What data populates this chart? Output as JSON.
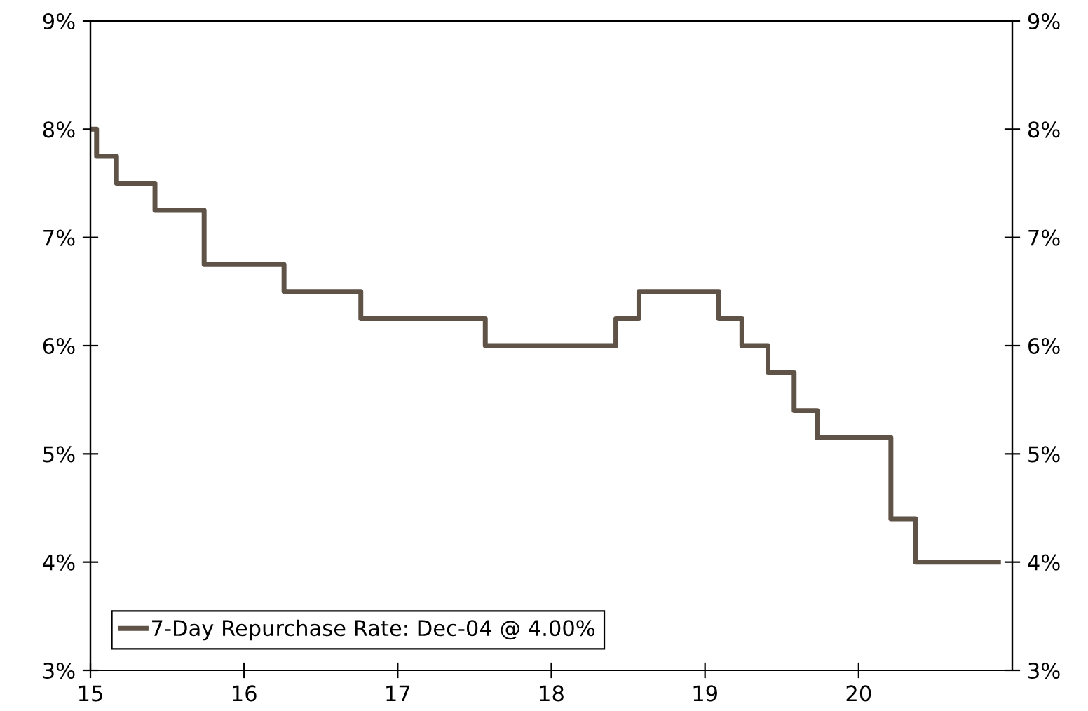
{
  "chart_data": {
    "type": "step",
    "x": [
      15.0,
      15.04,
      15.17,
      15.42,
      15.74,
      16.26,
      16.76,
      17.57,
      18.42,
      18.57,
      19.09,
      19.24,
      19.41,
      19.58,
      19.73,
      20.21,
      20.37,
      20.91
    ],
    "series": [
      {
        "name": "7-Day Repurchase Rate: Dec-04 @ 4.00%",
        "color": "#5f5246",
        "values": [
          8.0,
          7.75,
          7.5,
          7.25,
          6.75,
          6.5,
          6.25,
          6.0,
          6.25,
          6.5,
          6.25,
          6.0,
          5.75,
          5.4,
          5.15,
          4.4,
          4.0,
          4.0
        ]
      }
    ],
    "xlim": [
      15,
      21
    ],
    "xticks": [
      15,
      16,
      17,
      18,
      19,
      20
    ],
    "ylim": [
      3,
      9
    ],
    "yticks": [
      {
        "value": 3,
        "label": "3%"
      },
      {
        "value": 4,
        "label": "4%"
      },
      {
        "value": 5,
        "label": "5%"
      },
      {
        "value": 6,
        "label": "6%"
      },
      {
        "value": 7,
        "label": "7%"
      },
      {
        "value": 8,
        "label": "8%"
      },
      {
        "value": 9,
        "label": "9%"
      }
    ],
    "y2lim": [
      3,
      9
    ],
    "y2ticks": [
      {
        "value": 3,
        "label": "3%"
      },
      {
        "value": 4,
        "label": "4%"
      },
      {
        "value": 5,
        "label": "5%"
      },
      {
        "value": 6,
        "label": "6%"
      },
      {
        "value": 7,
        "label": "7%"
      },
      {
        "value": 8,
        "label": "8%"
      },
      {
        "value": 9,
        "label": "9%"
      }
    ],
    "grid": false,
    "legend": "bottom left",
    "line_style": "solid"
  }
}
